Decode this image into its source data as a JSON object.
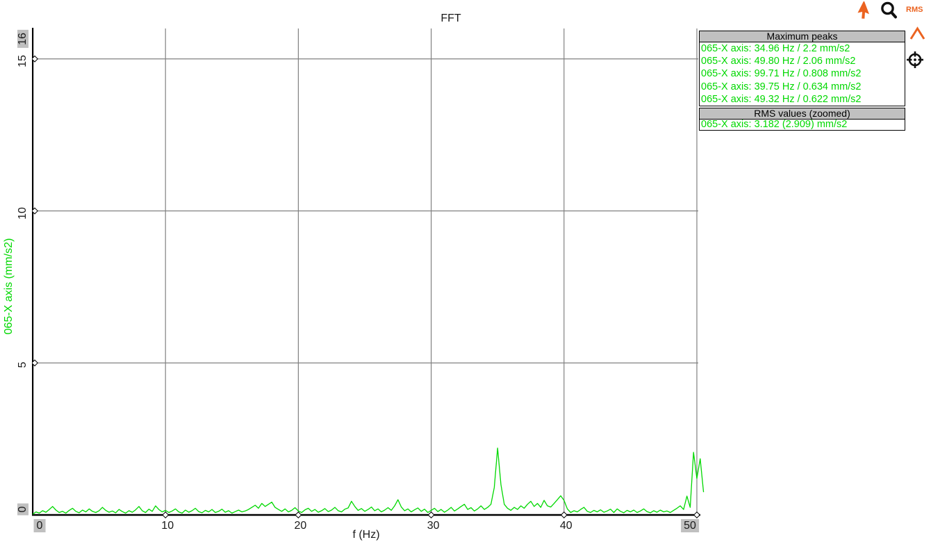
{
  "title": "FFT",
  "colors": {
    "trace_green": "#00D800",
    "panel_header_gray": "#C0C0C0",
    "tick_highlight_gray": "#C0C0C0",
    "grid_gray": "#808080",
    "axis_black": "#000000",
    "accent_orange": "#EB6320"
  },
  "toolbar": {
    "rms_label": "RMS",
    "icons": [
      "pointer-icon",
      "zoom-icon",
      "rms-button",
      "peak-marker-icon",
      "crosshair-icon"
    ]
  },
  "panels": {
    "maximum_peaks": {
      "title": "Maximum peaks",
      "entries": [
        "065-X axis: 34.96 Hz / 2.2 mm/s2",
        "065-X axis: 49.80 Hz / 2.06 mm/s2",
        "065-X axis: 99.71 Hz / 0.808 mm/s2",
        "065-X axis: 39.75 Hz / 0.634 mm/s2",
        "065-X axis: 49.32 Hz / 0.622 mm/s2"
      ]
    },
    "rms_values": {
      "title": "RMS values (zoomed)",
      "entries": [
        "065-X axis: 3.182 (2.909) mm/s2"
      ]
    }
  },
  "chart_data": {
    "type": "line",
    "title": "FFT",
    "xlabel": "f (Hz)",
    "ylabel": "065-X axis (mm/s2)",
    "xlim": [
      0,
      50
    ],
    "ylim": [
      0,
      16
    ],
    "x_ticks": [
      0,
      10,
      20,
      30,
      40,
      50
    ],
    "y_ticks": [
      0,
      5,
      10,
      15,
      16
    ],
    "highlighted_x_ticks": [
      0,
      50
    ],
    "highlighted_y_ticks": [
      0,
      16
    ],
    "grid": true,
    "peaks": [
      {
        "freq_hz": 34.96,
        "value_mm_s2": 2.2
      },
      {
        "freq_hz": 49.8,
        "value_mm_s2": 2.06
      },
      {
        "freq_hz": 99.71,
        "value_mm_s2": 0.808
      },
      {
        "freq_hz": 39.75,
        "value_mm_s2": 0.634
      },
      {
        "freq_hz": 49.32,
        "value_mm_s2": 0.622
      }
    ],
    "rms_zoomed_mm_s2": "3.182 (2.909)",
    "series": [
      {
        "name": "065-X axis",
        "color": "#00D800",
        "x0": 0,
        "dx": 0.25,
        "values": [
          0.02,
          0.1,
          0.06,
          0.14,
          0.09,
          0.18,
          0.28,
          0.16,
          0.08,
          0.12,
          0.06,
          0.15,
          0.22,
          0.12,
          0.07,
          0.16,
          0.1,
          0.2,
          0.12,
          0.08,
          0.14,
          0.25,
          0.15,
          0.09,
          0.13,
          0.07,
          0.18,
          0.11,
          0.06,
          0.14,
          0.09,
          0.17,
          0.28,
          0.14,
          0.08,
          0.19,
          0.12,
          0.3,
          0.18,
          0.1,
          0.15,
          0.08,
          0.13,
          0.2,
          0.1,
          0.06,
          0.16,
          0.09,
          0.14,
          0.22,
          0.11,
          0.07,
          0.15,
          0.1,
          0.18,
          0.08,
          0.12,
          0.19,
          0.09,
          0.14,
          0.06,
          0.11,
          0.16,
          0.1,
          0.13,
          0.18,
          0.25,
          0.32,
          0.22,
          0.38,
          0.28,
          0.35,
          0.42,
          0.25,
          0.18,
          0.12,
          0.2,
          0.1,
          0.15,
          0.24,
          0.13,
          0.08,
          0.17,
          0.22,
          0.12,
          0.18,
          0.09,
          0.14,
          0.21,
          0.11,
          0.16,
          0.25,
          0.14,
          0.1,
          0.19,
          0.23,
          0.45,
          0.28,
          0.15,
          0.21,
          0.12,
          0.18,
          0.26,
          0.14,
          0.2,
          0.1,
          0.16,
          0.24,
          0.15,
          0.3,
          0.5,
          0.26,
          0.14,
          0.2,
          0.1,
          0.17,
          0.23,
          0.12,
          0.19,
          0.08,
          0.15,
          0.22,
          0.11,
          0.18,
          0.09,
          0.16,
          0.25,
          0.13,
          0.2,
          0.28,
          0.35,
          0.18,
          0.24,
          0.13,
          0.2,
          0.3,
          0.18,
          0.25,
          0.35,
          0.9,
          2.2,
          1.0,
          0.35,
          0.22,
          0.15,
          0.25,
          0.18,
          0.3,
          0.22,
          0.35,
          0.45,
          0.28,
          0.38,
          0.25,
          0.48,
          0.3,
          0.26,
          0.38,
          0.5,
          0.63,
          0.48,
          0.2,
          0.08,
          0.14,
          0.1,
          0.18,
          0.25,
          0.12,
          0.08,
          0.15,
          0.1,
          0.17,
          0.09,
          0.13,
          0.19,
          0.08,
          0.2,
          0.12,
          0.07,
          0.15,
          0.1,
          0.16,
          0.08,
          0.13,
          0.2,
          0.11,
          0.07,
          0.14,
          0.09,
          0.16,
          0.1,
          0.13,
          0.08,
          0.15,
          0.22,
          0.3,
          0.18,
          0.62,
          0.25,
          2.06,
          1.2,
          1.85,
          0.75
        ]
      }
    ]
  }
}
